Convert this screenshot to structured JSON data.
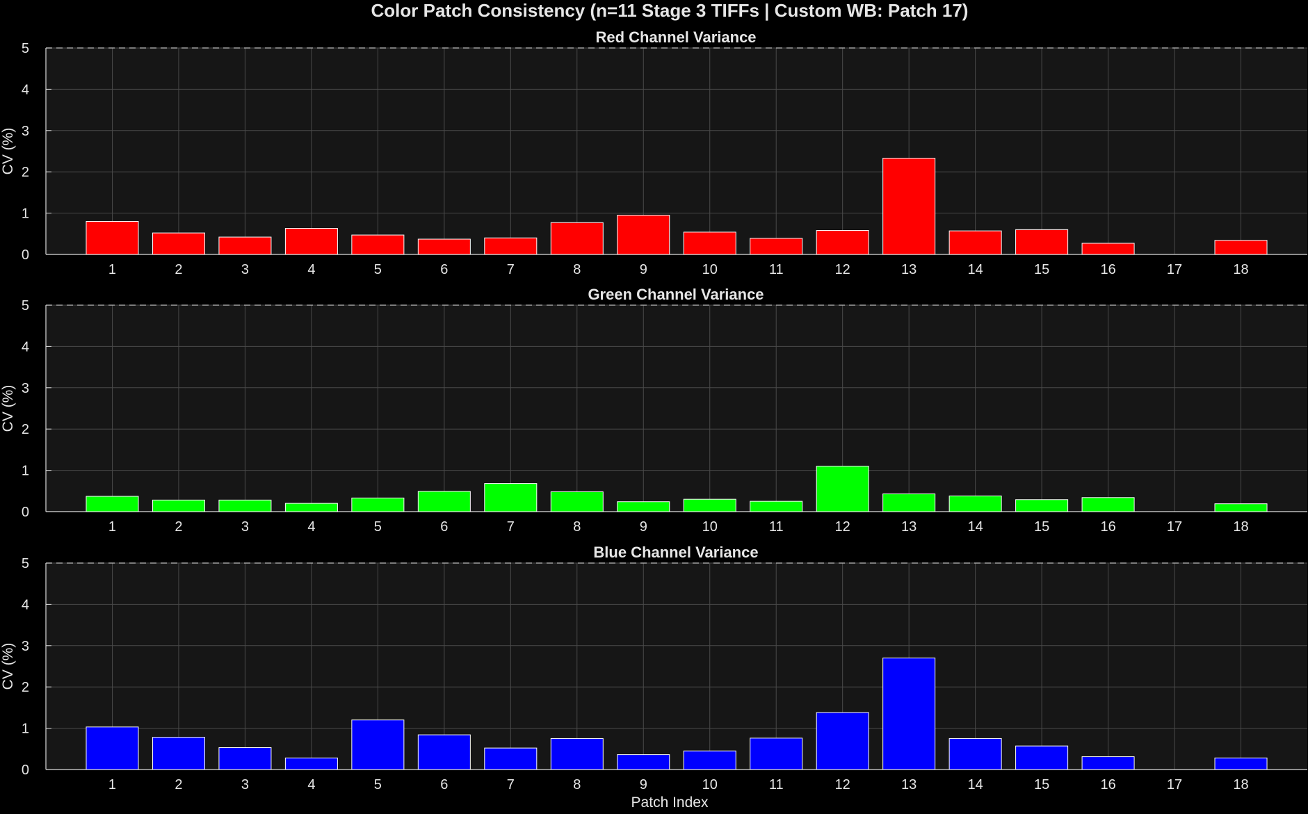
{
  "chart_data": {
    "title": "Color Patch Consistency (n=11 Stage 3 TIFFs | Custom WB: Patch 17)",
    "type": "bar",
    "categories": [
      "1",
      "2",
      "3",
      "4",
      "5",
      "6",
      "7",
      "8",
      "9",
      "10",
      "11",
      "12",
      "13",
      "14",
      "15",
      "16",
      "17",
      "18"
    ],
    "xlabel": "Patch Index",
    "grid": true,
    "panels": [
      {
        "title": "Red Channel Variance",
        "ylabel": "CV (%)",
        "ylim": [
          0,
          5
        ],
        "yticks": [
          "0",
          "1",
          "2",
          "3",
          "4",
          "5"
        ],
        "color": "#ff0000",
        "values": [
          0.8,
          0.52,
          0.42,
          0.63,
          0.47,
          0.37,
          0.4,
          0.77,
          0.95,
          0.54,
          0.39,
          0.58,
          2.33,
          0.57,
          0.6,
          0.27,
          0,
          0.34
        ]
      },
      {
        "title": "Green Channel Variance",
        "ylabel": "CV (%)",
        "ylim": [
          0,
          5
        ],
        "yticks": [
          "0",
          "1",
          "2",
          "3",
          "4",
          "5"
        ],
        "color": "#00ff00",
        "values": [
          0.37,
          0.28,
          0.28,
          0.2,
          0.33,
          0.49,
          0.68,
          0.48,
          0.24,
          0.3,
          0.25,
          1.1,
          0.43,
          0.38,
          0.29,
          0.34,
          0,
          0.19
        ]
      },
      {
        "title": "Blue Channel Variance",
        "ylabel": "CV (%)",
        "ylim": [
          0,
          5
        ],
        "yticks": [
          "0",
          "1",
          "2",
          "3",
          "4",
          "5"
        ],
        "color": "#0000ff",
        "values": [
          1.03,
          0.78,
          0.53,
          0.28,
          1.2,
          0.84,
          0.52,
          0.75,
          0.36,
          0.45,
          0.76,
          1.38,
          2.7,
          0.75,
          0.57,
          0.31,
          0,
          0.28
        ]
      }
    ]
  }
}
